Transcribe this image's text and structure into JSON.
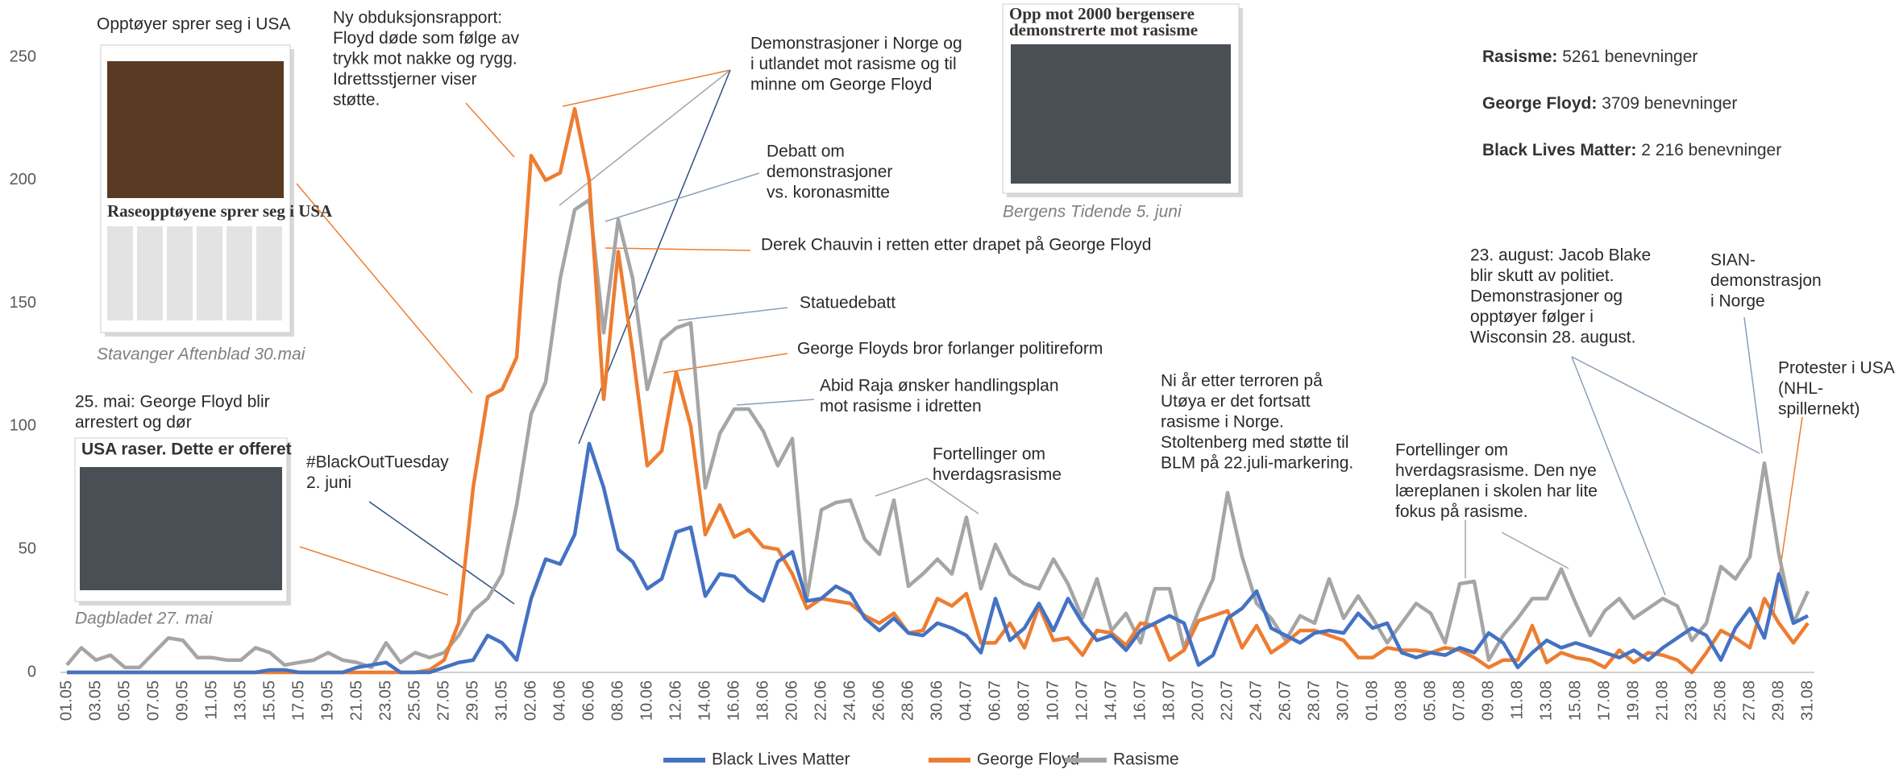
{
  "chart_data": {
    "type": "line",
    "yticks": [
      0,
      50,
      100,
      150,
      200,
      250
    ],
    "ylim": [
      0,
      250
    ],
    "grid": false,
    "categories": [
      "01.05",
      null,
      "03.05",
      null,
      "05.05",
      null,
      "07.05",
      null,
      "09.05",
      null,
      "11.05",
      null,
      "13.05",
      null,
      "15.05",
      null,
      "17.05",
      null,
      "19.05",
      null,
      "21.05",
      null,
      "23.05",
      null,
      "25.05",
      null,
      "27.05",
      null,
      "29.05",
      null,
      "31.05",
      null,
      "02.06",
      null,
      "04.06",
      null,
      "06.06",
      null,
      "08.06",
      null,
      "10.06",
      null,
      "12.06",
      null,
      "14.06",
      null,
      "16.06",
      null,
      "18.06",
      null,
      "20.06",
      null,
      "22.06",
      null,
      "24.06",
      null,
      "26.06",
      null,
      "28.06",
      null,
      "30.06",
      null,
      "04.07",
      null,
      "06.07",
      null,
      "08.07",
      null,
      "10.07",
      null,
      "12.07",
      null,
      "14.07",
      null,
      "16.07",
      null,
      "18.07",
      null,
      "20.07",
      null,
      "22.07",
      null,
      "24.07",
      null,
      "26.07",
      null,
      "28.07",
      null,
      "30.07",
      null,
      "01.08",
      null,
      "03.08",
      null,
      "05.08",
      null,
      "07.08",
      null,
      "09.08",
      null,
      "11.08",
      null,
      "13.08",
      null,
      "15.08",
      null,
      "17.08",
      null,
      "19.08",
      null,
      "21.08",
      null,
      "23.08",
      null,
      "25.08",
      null,
      "27.08",
      null,
      "29.08",
      null,
      "31.08"
    ],
    "series": [
      {
        "name": "Black Lives Matter",
        "color": "#4472c4",
        "values": [
          0,
          0,
          0,
          0,
          0,
          0,
          0,
          0,
          0,
          0,
          0,
          0,
          0,
          0,
          1,
          1,
          0,
          0,
          0,
          0,
          2,
          3,
          4,
          0,
          0,
          0,
          2,
          4,
          5,
          15,
          12,
          5,
          30,
          46,
          44,
          56,
          93,
          75,
          50,
          45,
          34,
          38,
          57,
          59,
          31,
          40,
          39,
          33,
          29,
          45,
          49,
          29,
          30,
          35,
          32,
          22,
          17,
          22,
          16,
          15,
          20,
          18,
          15,
          8,
          30,
          13,
          18,
          28,
          17,
          30,
          20,
          13,
          15,
          9,
          17,
          20,
          23,
          20,
          3,
          7,
          22,
          26,
          33,
          18,
          15,
          12,
          16,
          17,
          16,
          24,
          18,
          20,
          8,
          6,
          8,
          7,
          10,
          8,
          16,
          12,
          2,
          8,
          13,
          10,
          12,
          10,
          8,
          6,
          9,
          5,
          10,
          14,
          18,
          15,
          5,
          18,
          26,
          14,
          40,
          20,
          23
        ]
      },
      {
        "name": "George Floyd",
        "color": "#ed7d31",
        "values": [
          0,
          0,
          0,
          0,
          0,
          0,
          0,
          0,
          0,
          0,
          0,
          0,
          0,
          0,
          0,
          0,
          0,
          0,
          0,
          0,
          0,
          0,
          0,
          0,
          0,
          1,
          5,
          20,
          75,
          112,
          115,
          128,
          210,
          200,
          203,
          229,
          200,
          111,
          171,
          130,
          84,
          90,
          122,
          100,
          56,
          68,
          55,
          58,
          51,
          50,
          40,
          26,
          30,
          29,
          28,
          23,
          20,
          24,
          16,
          17,
          30,
          27,
          32,
          12,
          12,
          20,
          10,
          27,
          13,
          14,
          7,
          17,
          16,
          11,
          20,
          19,
          5,
          9,
          21,
          23,
          25,
          10,
          19,
          8,
          12,
          17,
          17,
          15,
          13,
          6,
          6,
          10,
          9,
          9,
          8,
          10,
          9,
          6,
          2,
          5,
          5,
          19,
          4,
          8,
          6,
          5,
          2,
          9,
          4,
          8,
          7,
          5,
          0,
          8,
          17,
          14,
          10,
          30,
          20,
          12,
          20
        ]
      },
      {
        "name": "Rasisme",
        "color": "#a5a5a5",
        "values": [
          3,
          10,
          5,
          7,
          2,
          2,
          8,
          14,
          13,
          6,
          6,
          5,
          5,
          10,
          8,
          3,
          4,
          5,
          8,
          5,
          4,
          2,
          12,
          4,
          8,
          6,
          8,
          15,
          25,
          30,
          40,
          68,
          105,
          118,
          160,
          188,
          192,
          138,
          184,
          160,
          115,
          135,
          140,
          142,
          75,
          97,
          107,
          107,
          98,
          84,
          95,
          30,
          66,
          69,
          70,
          54,
          48,
          70,
          35,
          40,
          46,
          40,
          63,
          34,
          52,
          40,
          36,
          34,
          46,
          36,
          22,
          38,
          17,
          24,
          12,
          34,
          34,
          10,
          25,
          38,
          73,
          47,
          28,
          22,
          13,
          23,
          20,
          38,
          22,
          31,
          22,
          12,
          20,
          28,
          24,
          12,
          36,
          37,
          5,
          15,
          22,
          30,
          30,
          42,
          28,
          15,
          25,
          30,
          22,
          26,
          30,
          27,
          13,
          20,
          43,
          38,
          47,
          85,
          48,
          20,
          33
        ]
      }
    ],
    "annotations": [
      [
        "Opptøyer sprer seg i USA"
      ],
      [
        "25. mai: George Floyd blir",
        "arrestert og dør"
      ],
      [
        "Ny obduksjonsrapport:",
        "Floyd døde som følge av",
        "trykk mot nakke og rygg.",
        "Idrettsstjerner viser",
        "støtte."
      ],
      [
        "#BlackOutTuesday",
        "2. juni"
      ],
      [
        "Demonstrasjoner i Norge og",
        "i utlandet mot rasisme og til",
        "minne om George Floyd"
      ],
      [
        "Debatt om",
        "demonstrasjoner",
        "vs. koronasmitte"
      ],
      [
        "Derek Chauvin i retten etter drapet på George Floyd"
      ],
      [
        "Statuedebatt"
      ],
      [
        "George Floyds bror forlanger politireform"
      ],
      [
        "Abid Raja ønsker handlingsplan",
        "mot rasisme i idretten"
      ],
      [
        "Fortellinger om",
        "hverdagsrasisme"
      ],
      [
        "Ni år etter terroren på",
        "Utøya er det fortsatt",
        "rasisme i Norge.",
        "Stoltenberg med støtte til",
        "BLM på 22.juli-markering."
      ],
      [
        "Fortellinger om",
        "hverdagsrasisme. Den nye",
        "læreplanen i skolen har lite",
        "fokus på rasisme."
      ],
      [
        "23. august: Jacob Blake",
        "blir skutt av politiet.",
        "Demonstrasjoner og",
        "opptøyer følger i",
        "Wisconsin 28. august."
      ],
      [
        "SIAN-",
        "demonstrasjon",
        "i Norge"
      ],
      [
        "Protester i USA",
        "(NHL-",
        "spillernekt)"
      ]
    ],
    "images": [
      {
        "headline": [
          "Raseopptøyene sprer seg i USA"
        ],
        "caption": "Stavanger Aftenblad  30.mai"
      },
      {
        "headline": [
          "USA raser. Dette er offeret"
        ],
        "caption": "Dagbladet 27. mai"
      },
      {
        "headline": [
          "Opp mot 2000 bergensere",
          "demonstrerte mot rasisme"
        ],
        "caption": "Bergens Tidende 5. juni"
      }
    ],
    "stats": [
      {
        "label": "Rasisme:",
        "text": " 5261 benevninger"
      },
      {
        "label": "George Floyd:",
        "text": " 3709 benevninger"
      },
      {
        "label": "Black Lives Matter:",
        "text": " 2 216 benevninger"
      }
    ]
  }
}
